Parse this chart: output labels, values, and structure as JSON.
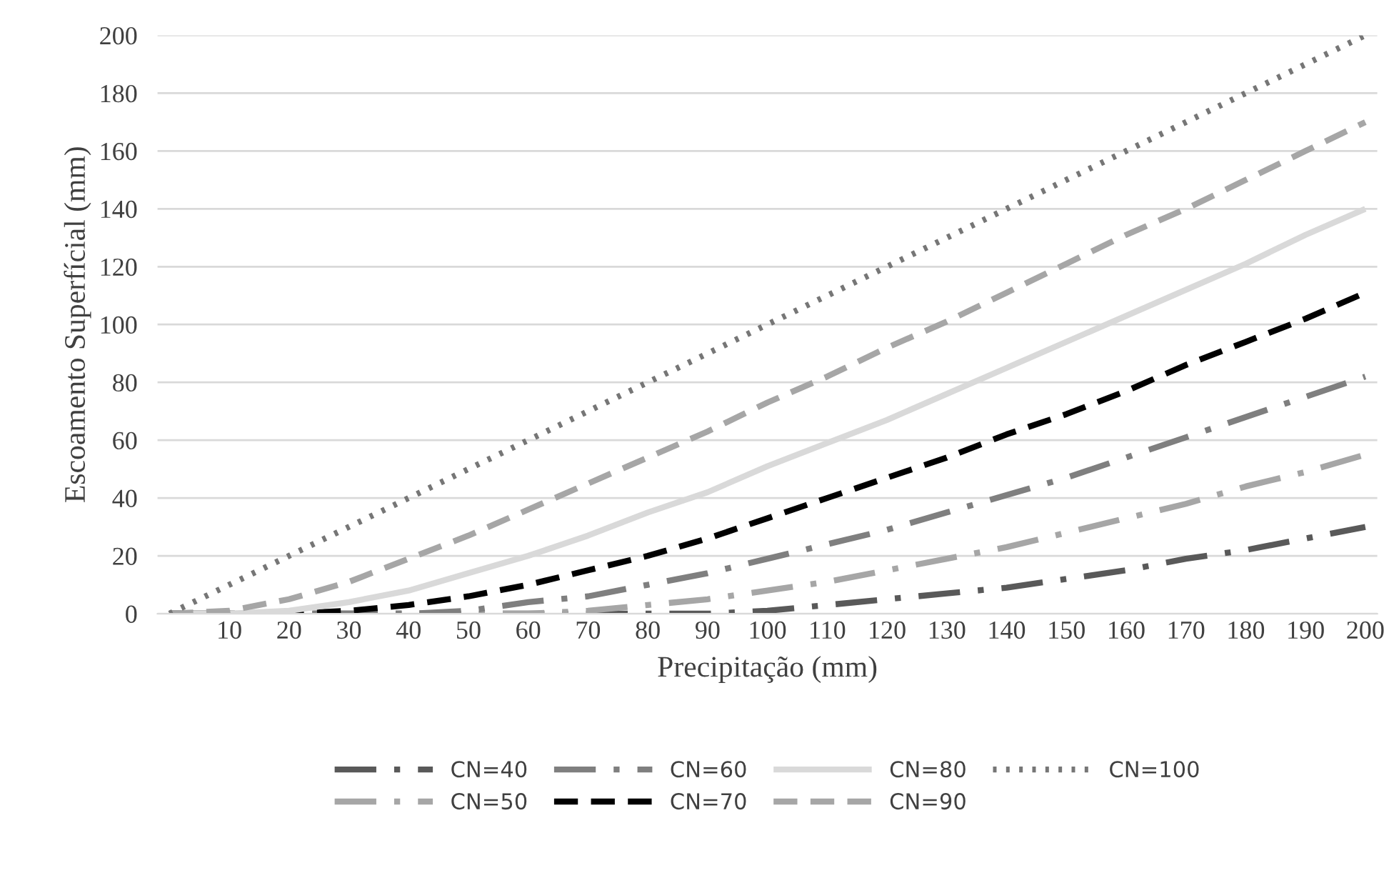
{
  "chart_data": {
    "type": "line",
    "xlabel": "Precipitação (mm)",
    "ylabel": "Escoamento Superfícial (mm)",
    "categories": [
      null,
      "10",
      "20",
      "30",
      "40",
      "50",
      "60",
      "70",
      "80",
      "90",
      "100",
      "110",
      "120",
      "130",
      "140",
      "150",
      "160",
      "170",
      "180",
      "190",
      "200"
    ],
    "series": [
      {
        "name": "CN=40",
        "color": "#595959",
        "line_style": "dashdot",
        "values": [
          0,
          0,
          0,
          0,
          0,
          0,
          0,
          0,
          0,
          0,
          1,
          3,
          5,
          7,
          9,
          12,
          15,
          19,
          22,
          26,
          30
        ]
      },
      {
        "name": "CN=50",
        "color": "#a6a6a6",
        "line_style": "dashdot",
        "values": [
          0,
          0,
          0,
          0,
          0,
          0,
          0,
          1,
          3,
          5,
          8,
          11,
          15,
          19,
          23,
          28,
          33,
          38,
          44,
          49,
          55
        ]
      },
      {
        "name": "CN=60",
        "color": "#7f7f7f",
        "line_style": "dashdot",
        "values": [
          0,
          0,
          0,
          0,
          0,
          1,
          4,
          6,
          10,
          14,
          19,
          24,
          29,
          35,
          41,
          47,
          54,
          61,
          68,
          75,
          82
        ]
      },
      {
        "name": "CN=70",
        "color": "#000000",
        "line_style": "dashed",
        "values": [
          0,
          0,
          0,
          1,
          3,
          6,
          10,
          15,
          20,
          26,
          33,
          40,
          47,
          54,
          62,
          69,
          77,
          86,
          94,
          102,
          111
        ]
      },
      {
        "name": "CN=80",
        "color": "#d9d9d9",
        "line_style": "solid",
        "values": [
          0,
          0,
          1,
          4,
          8,
          14,
          20,
          27,
          35,
          42,
          51,
          59,
          67,
          76,
          85,
          94,
          103,
          112,
          121,
          131,
          140
        ]
      },
      {
        "name": "CN=90",
        "color": "#a6a6a6",
        "line_style": "dashed",
        "values": [
          0,
          1,
          5,
          11,
          19,
          27,
          36,
          45,
          54,
          63,
          73,
          82,
          92,
          101,
          111,
          121,
          131,
          140,
          150,
          160,
          170
        ]
      },
      {
        "name": "CN=100",
        "color": "#767676",
        "line_style": "dotted",
        "values": [
          0,
          10,
          20,
          30,
          40,
          50,
          60,
          70,
          80,
          90,
          100,
          110,
          120,
          130,
          140,
          150,
          160,
          170,
          180,
          190,
          200
        ]
      }
    ],
    "ylim": [
      0,
      200
    ],
    "yticks": [
      0,
      20,
      40,
      60,
      80,
      100,
      120,
      140,
      160,
      180,
      200
    ],
    "grid": "y",
    "legend": "bottom",
    "marker": "none"
  }
}
